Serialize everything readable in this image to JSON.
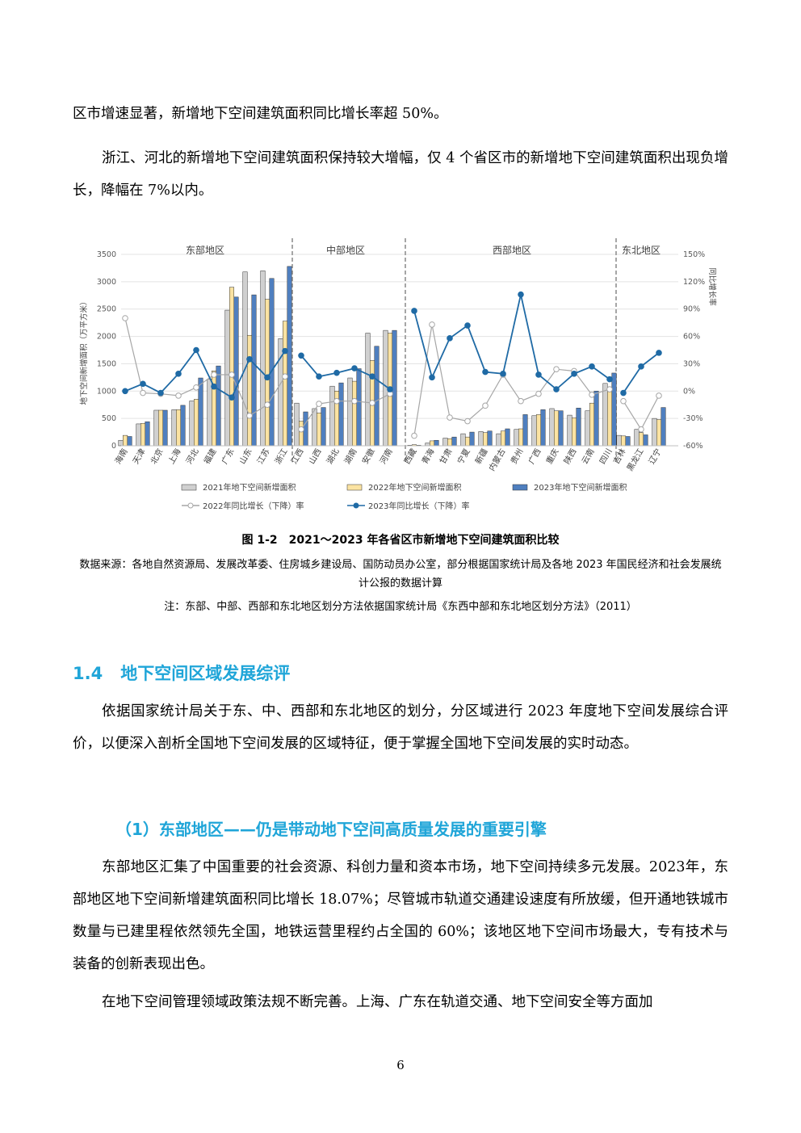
{
  "paragraphs": {
    "p1": "区市增速显著，新增地下空间建筑面积同比增长率超 50%。",
    "p2": "浙江、河北的新增地下空间建筑面积保持较大增幅，仅 4 个省区市的新增地下空间建筑面积出现负增长，降幅在 7%以内。",
    "p3": "依据国家统计局关于东、中、西部和东北地区的划分，分区域进行 2023 年度地下空间发展综合评价，以便深入剖析全国地下空间发展的区域特征，便于掌握全国地下空间发展的实时动态。",
    "p4": "东部地区汇集了中国重要的社会资源、科创力量和资本市场，地下空间持续多元发展。2023年，东部地区地下空间新增建筑面积同比增长 18.07%；尽管城市轨道交通建设速度有所放缓，但开通地铁城市数量与已建里程依然领先全国，地铁运营里程约占全国的 60%；该地区地下空间市场最大，专有技术与装备的创新表现出色。",
    "p5": "在地下空间管理领域政策法规不断完善。上海、广东在轨道交通、地下空间安全等方面加"
  },
  "figure": {
    "caption": "图 1-2　2021～2023 年各省区市新增地下空间建筑面积比较",
    "source": "数据来源：各地自然资源局、发展改革委、住房城乡建设局、国防动员办公室，部分根据国家统计局及各地 2023 年国民经济和社会发展统计公报的数据计算",
    "note": "注：东部、中部、西部和东北地区划分方法依据国家统计局《东西中部和东北地区划分方法》（2011）"
  },
  "section": {
    "number": "1.4",
    "title": "地下空间区域发展综评"
  },
  "subsection": {
    "title": "（1）东部地区——仍是带动地下空间高质量发展的重要引擎"
  },
  "page_number": "6",
  "chart_data": {
    "type": "bar",
    "ylabel": "地下空间新增面积（万平方米）",
    "y2label": "同比增长率",
    "ylim": [
      0,
      3500
    ],
    "yticks": [
      0,
      500,
      1000,
      1500,
      2000,
      2500,
      3000,
      3500
    ],
    "y2lim": [
      -60,
      150
    ],
    "y2ticks": [
      "-60%",
      "-30%",
      "0%",
      "30%",
      "60%",
      "90%",
      "120%",
      "150%"
    ],
    "regions": [
      {
        "name": "东部地区",
        "categories": [
          "海南",
          "天津",
          "北京",
          "上海",
          "河北",
          "福建",
          "广东",
          "山东",
          "江苏",
          "浙江"
        ],
        "v2021": [
          100,
          400,
          650,
          660,
          820,
          1220,
          2480,
          3180,
          3200,
          1960
        ],
        "v2022": [
          190,
          410,
          650,
          660,
          850,
          1370,
          2900,
          2020,
          2680,
          2280
        ],
        "v2023": [
          170,
          440,
          650,
          740,
          1240,
          1460,
          2720,
          2760,
          3060,
          3280
        ],
        "g2022": [
          80,
          -2,
          -3,
          -5,
          4,
          18,
          18,
          -27,
          -15,
          16
        ],
        "g2023": [
          0,
          8,
          -2,
          19,
          45,
          5,
          -7,
          35,
          15,
          44
        ]
      },
      {
        "name": "中部地区",
        "categories": [
          "江西",
          "山西",
          "湖北",
          "湖南",
          "安徽",
          "河南"
        ],
        "v2021": [
          780,
          680,
          1090,
          1240,
          2060,
          2110
        ],
        "v2022": [
          450,
          600,
          1000,
          1180,
          1560,
          2060
        ],
        "v2023": [
          620,
          700,
          1150,
          1410,
          1820,
          2110
        ],
        "g2022": [
          -42,
          -14,
          -11,
          -11,
          -13,
          -3
        ],
        "g2023": [
          39,
          16,
          20,
          25,
          16,
          2
        ]
      },
      {
        "name": "西部地区",
        "categories": [
          "西藏",
          "青海",
          "甘肃",
          "宁夏",
          "新疆",
          "内蒙古",
          "贵州",
          "广西",
          "重庆",
          "陕西",
          "云南",
          "四川"
        ],
        "v2021": [
          10,
          50,
          140,
          220,
          260,
          220,
          300,
          550,
          680,
          560,
          640,
          1140
        ],
        "v2022": [
          20,
          90,
          130,
          160,
          240,
          270,
          310,
          570,
          640,
          510,
          780,
          1050
        ],
        "v2023": [
          10,
          100,
          160,
          250,
          270,
          310,
          570,
          660,
          640,
          690,
          1000,
          1330
        ],
        "g2022": [
          -49,
          73,
          -29,
          -33,
          -16,
          18,
          -11,
          -3,
          24,
          22,
          -4,
          2
        ],
        "g2023": [
          88,
          15,
          58,
          72,
          21,
          19,
          106,
          18,
          2,
          19,
          27,
          13
        ]
      },
      {
        "name": "东北地区",
        "categories": [
          "吉林",
          "黑龙江",
          "辽宁"
        ],
        "v2021": [
          190,
          300,
          500
        ],
        "v2022": [
          180,
          240,
          480
        ],
        "v2023": [
          170,
          200,
          700
        ],
        "g2022": [
          -11,
          -42,
          -5
        ],
        "g2023": [
          -2,
          27,
          42
        ]
      }
    ],
    "legend": {
      "b2021": "2021年地下空间新增面积",
      "b2022": "2022年地下空间新增面积",
      "b2023": "2023年地下空间新增面积",
      "l2022": "2022年同比增长（下降）率",
      "l2023": "2023年同比增长（下降）率"
    },
    "colors": {
      "b2021": "#d0d0d0",
      "b2022": "#fbe3a2",
      "b2023": "#4f7fbf",
      "l2022": "#a6a6a6",
      "l2023": "#1f6aa5"
    },
    "grid": true
  }
}
